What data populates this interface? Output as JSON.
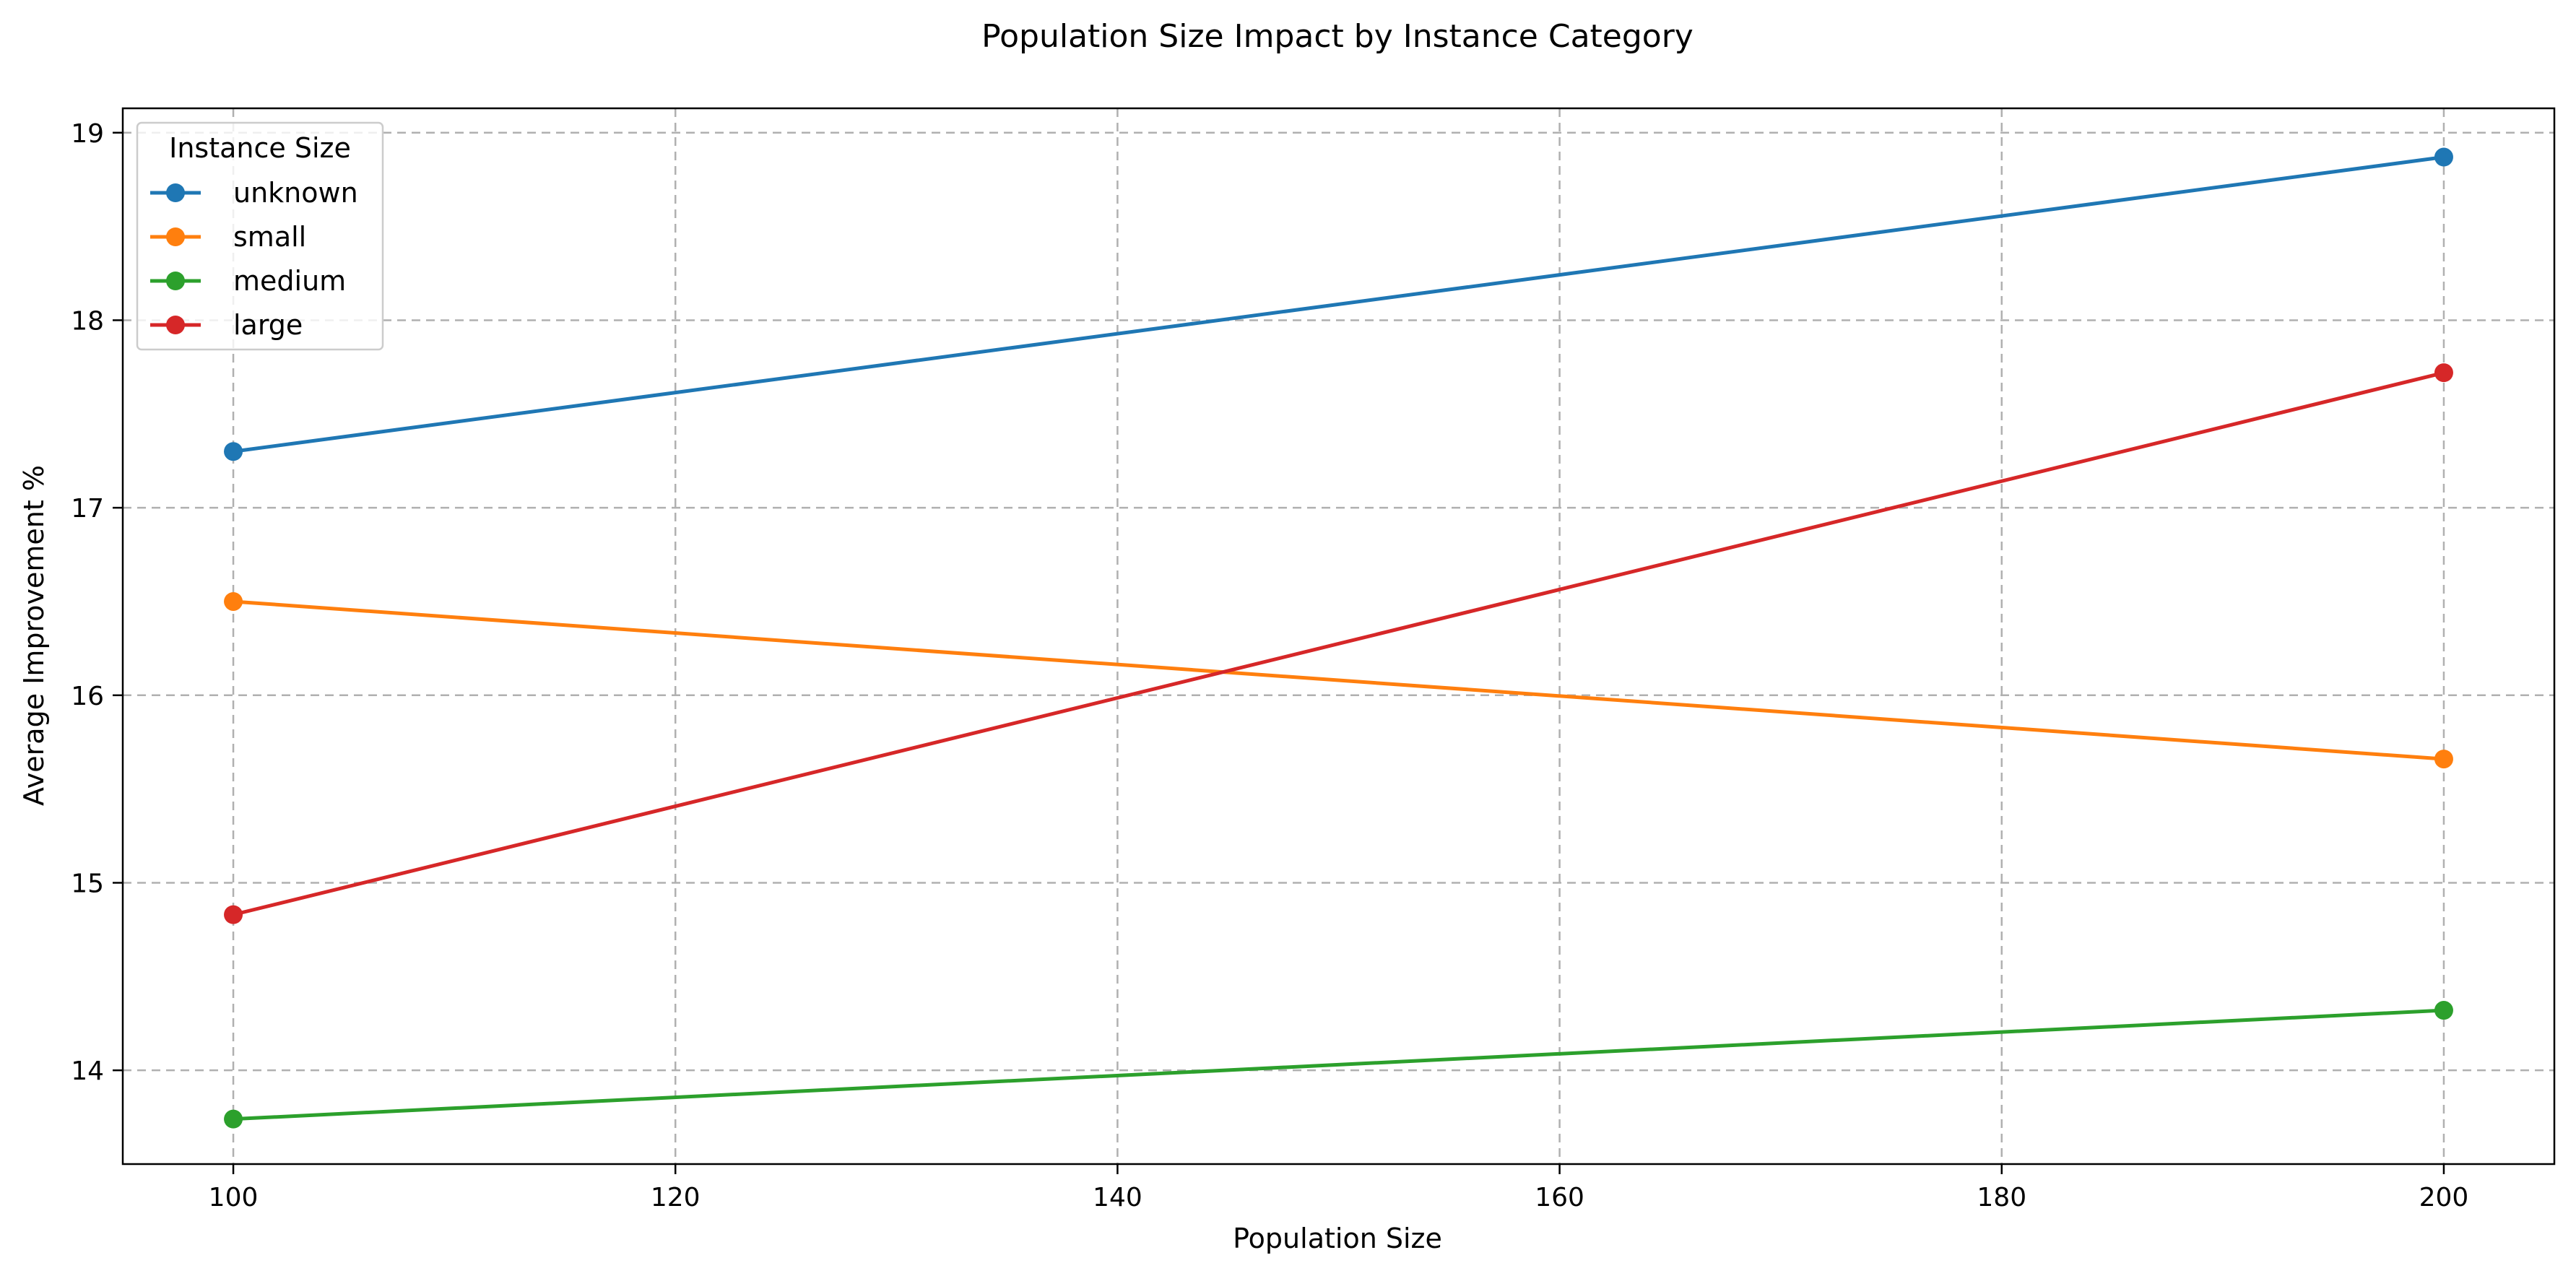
{
  "chart_data": {
    "type": "line",
    "title": "Population Size Impact by Instance Category",
    "xlabel": "Population Size",
    "ylabel": "Average Improvement %",
    "x": [
      100,
      200
    ],
    "xlim": [
      95,
      205
    ],
    "ylim": [
      13.5,
      19.13
    ],
    "xticks": [
      100,
      120,
      140,
      160,
      180,
      200
    ],
    "yticks": [
      14,
      15,
      16,
      17,
      18,
      19
    ],
    "grid": true,
    "legend": {
      "title": "Instance Size",
      "position": "top-left"
    },
    "series": [
      {
        "name": "unknown",
        "color": "#1f77b4",
        "values": [
          17.3,
          18.87
        ]
      },
      {
        "name": "small",
        "color": "#ff7f0e",
        "values": [
          16.5,
          15.66
        ]
      },
      {
        "name": "medium",
        "color": "#2ca02c",
        "values": [
          13.74,
          14.32
        ]
      },
      {
        "name": "large",
        "color": "#d62728",
        "values": [
          14.83,
          17.72
        ]
      }
    ]
  }
}
